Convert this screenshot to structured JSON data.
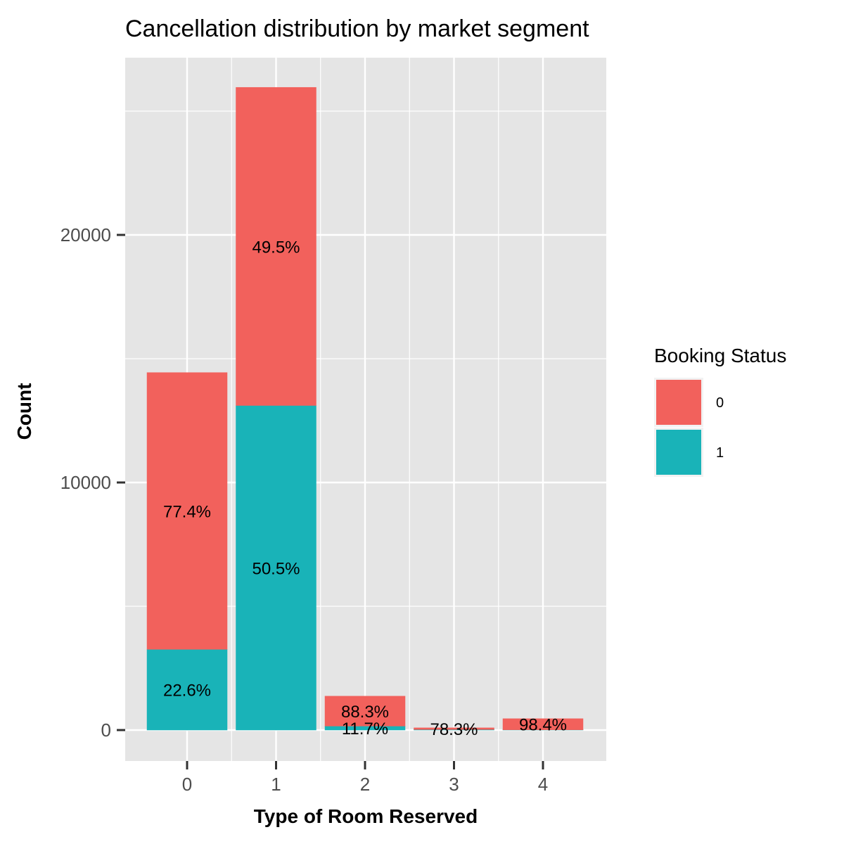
{
  "chart_data": {
    "type": "bar",
    "stacked": true,
    "title": "Cancellation distribution by market segment",
    "xlabel": "Type of Room Reserved",
    "ylabel": "Count",
    "categories": [
      "0",
      "1",
      "2",
      "3",
      "4"
    ],
    "ylim": [
      -1200,
      26400
    ],
    "y_ticks": [
      0,
      10000,
      20000
    ],
    "grid": true,
    "legend": {
      "title": "Booking Status",
      "position": "right"
    },
    "series": [
      {
        "name": "1",
        "color": "#19B3B8",
        "values": [
          3260,
          13110,
          160,
          20,
          10
        ],
        "labels": [
          "22.6%",
          "50.5%",
          "11.7%",
          "",
          ""
        ]
      },
      {
        "name": "0",
        "color": "#F2615C",
        "values": [
          11180,
          12850,
          1210,
          70,
          450
        ],
        "labels": [
          "77.4%",
          "49.5%",
          "88.3%",
          "78.3%",
          "98.4%"
        ]
      }
    ]
  }
}
